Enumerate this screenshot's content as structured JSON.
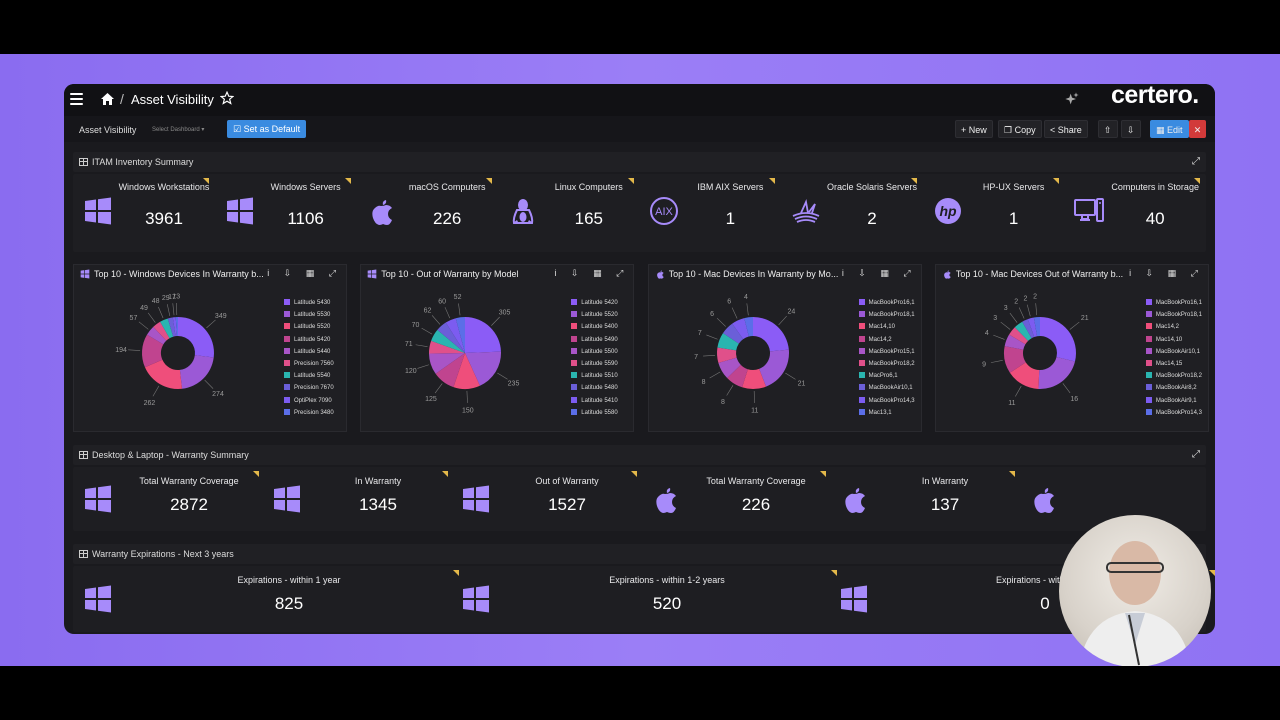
{
  "header": {
    "title": "Asset Visibility",
    "logo": "certero."
  },
  "toolbar": {
    "dashboard_label": "Asset Visibility",
    "select_placeholder": "Select Dashboard ▾",
    "default_label": "Set as Default",
    "new_label": "+ New",
    "copy_label": "Copy",
    "share_label": "Share",
    "edit_label": "Edit",
    "close_label": "✕"
  },
  "sections": {
    "inventory": "ITAM Inventory Summary",
    "warranty_summary": "Desktop & Laptop - Warranty Summary",
    "expirations": "Warranty Expirations - Next 3 years"
  },
  "inventory_kpis": [
    {
      "label": "Windows Workstations",
      "value": "3961",
      "icon": "windows-icon"
    },
    {
      "label": "Windows Servers",
      "value": "1106",
      "icon": "windows-icon"
    },
    {
      "label": "macOS Computers",
      "value": "226",
      "icon": "apple-icon"
    },
    {
      "label": "Linux Computers",
      "value": "165",
      "icon": "linux-icon"
    },
    {
      "label": "IBM AIX Servers",
      "value": "1",
      "icon": "aix-icon"
    },
    {
      "label": "Oracle Solaris Servers",
      "value": "2",
      "icon": "solaris-icon"
    },
    {
      "label": "HP-UX Servers",
      "value": "1",
      "icon": "hp-icon"
    },
    {
      "label": "Computers in Storage",
      "value": "40",
      "icon": "desktop-icon"
    }
  ],
  "warranty_kpis": [
    {
      "label": "Total Warranty Coverage",
      "value": "2872",
      "icon": "windows-icon"
    },
    {
      "label": "In Warranty",
      "value": "1345",
      "icon": "windows-icon"
    },
    {
      "label": "Out of Warranty",
      "value": "1527",
      "icon": "windows-icon"
    },
    {
      "label": "Total Warranty Coverage",
      "value": "226",
      "icon": "apple-icon"
    },
    {
      "label": "In Warranty",
      "value": "137",
      "icon": "apple-icon"
    },
    {
      "label": "",
      "value": "",
      "icon": "apple-icon"
    }
  ],
  "expiration_kpis": [
    {
      "label": "Expirations - within 1 year",
      "value": "825",
      "icon": "windows-icon"
    },
    {
      "label": "Expirations - within 1-2 years",
      "value": "520",
      "icon": "windows-icon"
    },
    {
      "label": "Expirations - within 2-3 y",
      "value": "0",
      "icon": "windows-icon"
    }
  ],
  "colors": [
    "#8b5cf6",
    "#9b59d6",
    "#ef4e7b",
    "#c0448f",
    "#a855c7",
    "#e0508a",
    "#2ab5b0",
    "#6b5fd8",
    "#7c5cf0",
    "#5b6ee8"
  ],
  "chart_data": [
    {
      "type": "pie",
      "title": "Top 10 - Windows Devices In Warranty b...",
      "donut": true,
      "icon": "windows-icon",
      "categories": [
        "Latitude 5430",
        "Latitude 5530",
        "Latitude 5520",
        "Latitude 5420",
        "Latitude 5440",
        "Precision 7560",
        "Latitude 5540",
        "Precision 7670",
        "OptiPlex 7090",
        "Precision 3480"
      ],
      "values": [
        349,
        274,
        262,
        194,
        57,
        49,
        48,
        29,
        17,
        13
      ],
      "labels": [
        "349",
        "274",
        "262",
        "194",
        "57",
        "49",
        "48",
        "29",
        "17",
        "13"
      ]
    },
    {
      "type": "pie",
      "title": "Top 10 - Out of Warranty by Model",
      "donut": false,
      "icon": "windows-icon",
      "categories": [
        "Latitude 5420",
        "Latitude 5520",
        "Latitude 5400",
        "Latitude 5490",
        "Latitude 5500",
        "Latitude 5590",
        "Latitude 5510",
        "Latitude 5480",
        "Latitude 5410",
        "Latitude 5580"
      ],
      "values": [
        305,
        235,
        150,
        125,
        120,
        71,
        70,
        62,
        60,
        52
      ],
      "labels": [
        "305",
        "235",
        "150",
        "125",
        "120",
        "71",
        "70",
        "62",
        "60",
        "52"
      ]
    },
    {
      "type": "pie",
      "title": "Top 10 - Mac Devices In Warranty by Mo...",
      "donut": true,
      "icon": "apple-icon",
      "categories": [
        "MacBookPro16,1",
        "MacBookPro18,1",
        "Mac14,10",
        "Mac14,2",
        "MacBookPro15,1",
        "MacBookPro18,2",
        "MacPro6,1",
        "MacBookAir10,1",
        "MacBookPro14,3",
        "Mac13,1"
      ],
      "values": [
        24,
        21,
        11,
        8,
        8,
        7,
        7,
        6,
        6,
        4
      ],
      "labels": [
        "24",
        "21",
        "11",
        "8",
        "8",
        "7",
        "7",
        "6",
        "6",
        "4"
      ]
    },
    {
      "type": "pie",
      "title": "Top 10 - Mac Devices Out of Warranty b...",
      "donut": true,
      "icon": "apple-icon",
      "categories": [
        "MacBookPro16,1",
        "MacBookPro18,1",
        "Mac14,2",
        "Mac14,10",
        "MacBookAir10,1",
        "Mac14,15",
        "MacBookPro18,2",
        "MacBookAir8,2",
        "MacBookAir9,1",
        "MacBookPro14,3"
      ],
      "values": [
        21,
        16,
        11,
        9,
        4,
        3,
        3,
        2,
        2,
        2
      ],
      "labels": [
        "21",
        "16",
        "11",
        "9",
        "4",
        "3",
        "3",
        "2",
        "2",
        "2"
      ]
    }
  ]
}
